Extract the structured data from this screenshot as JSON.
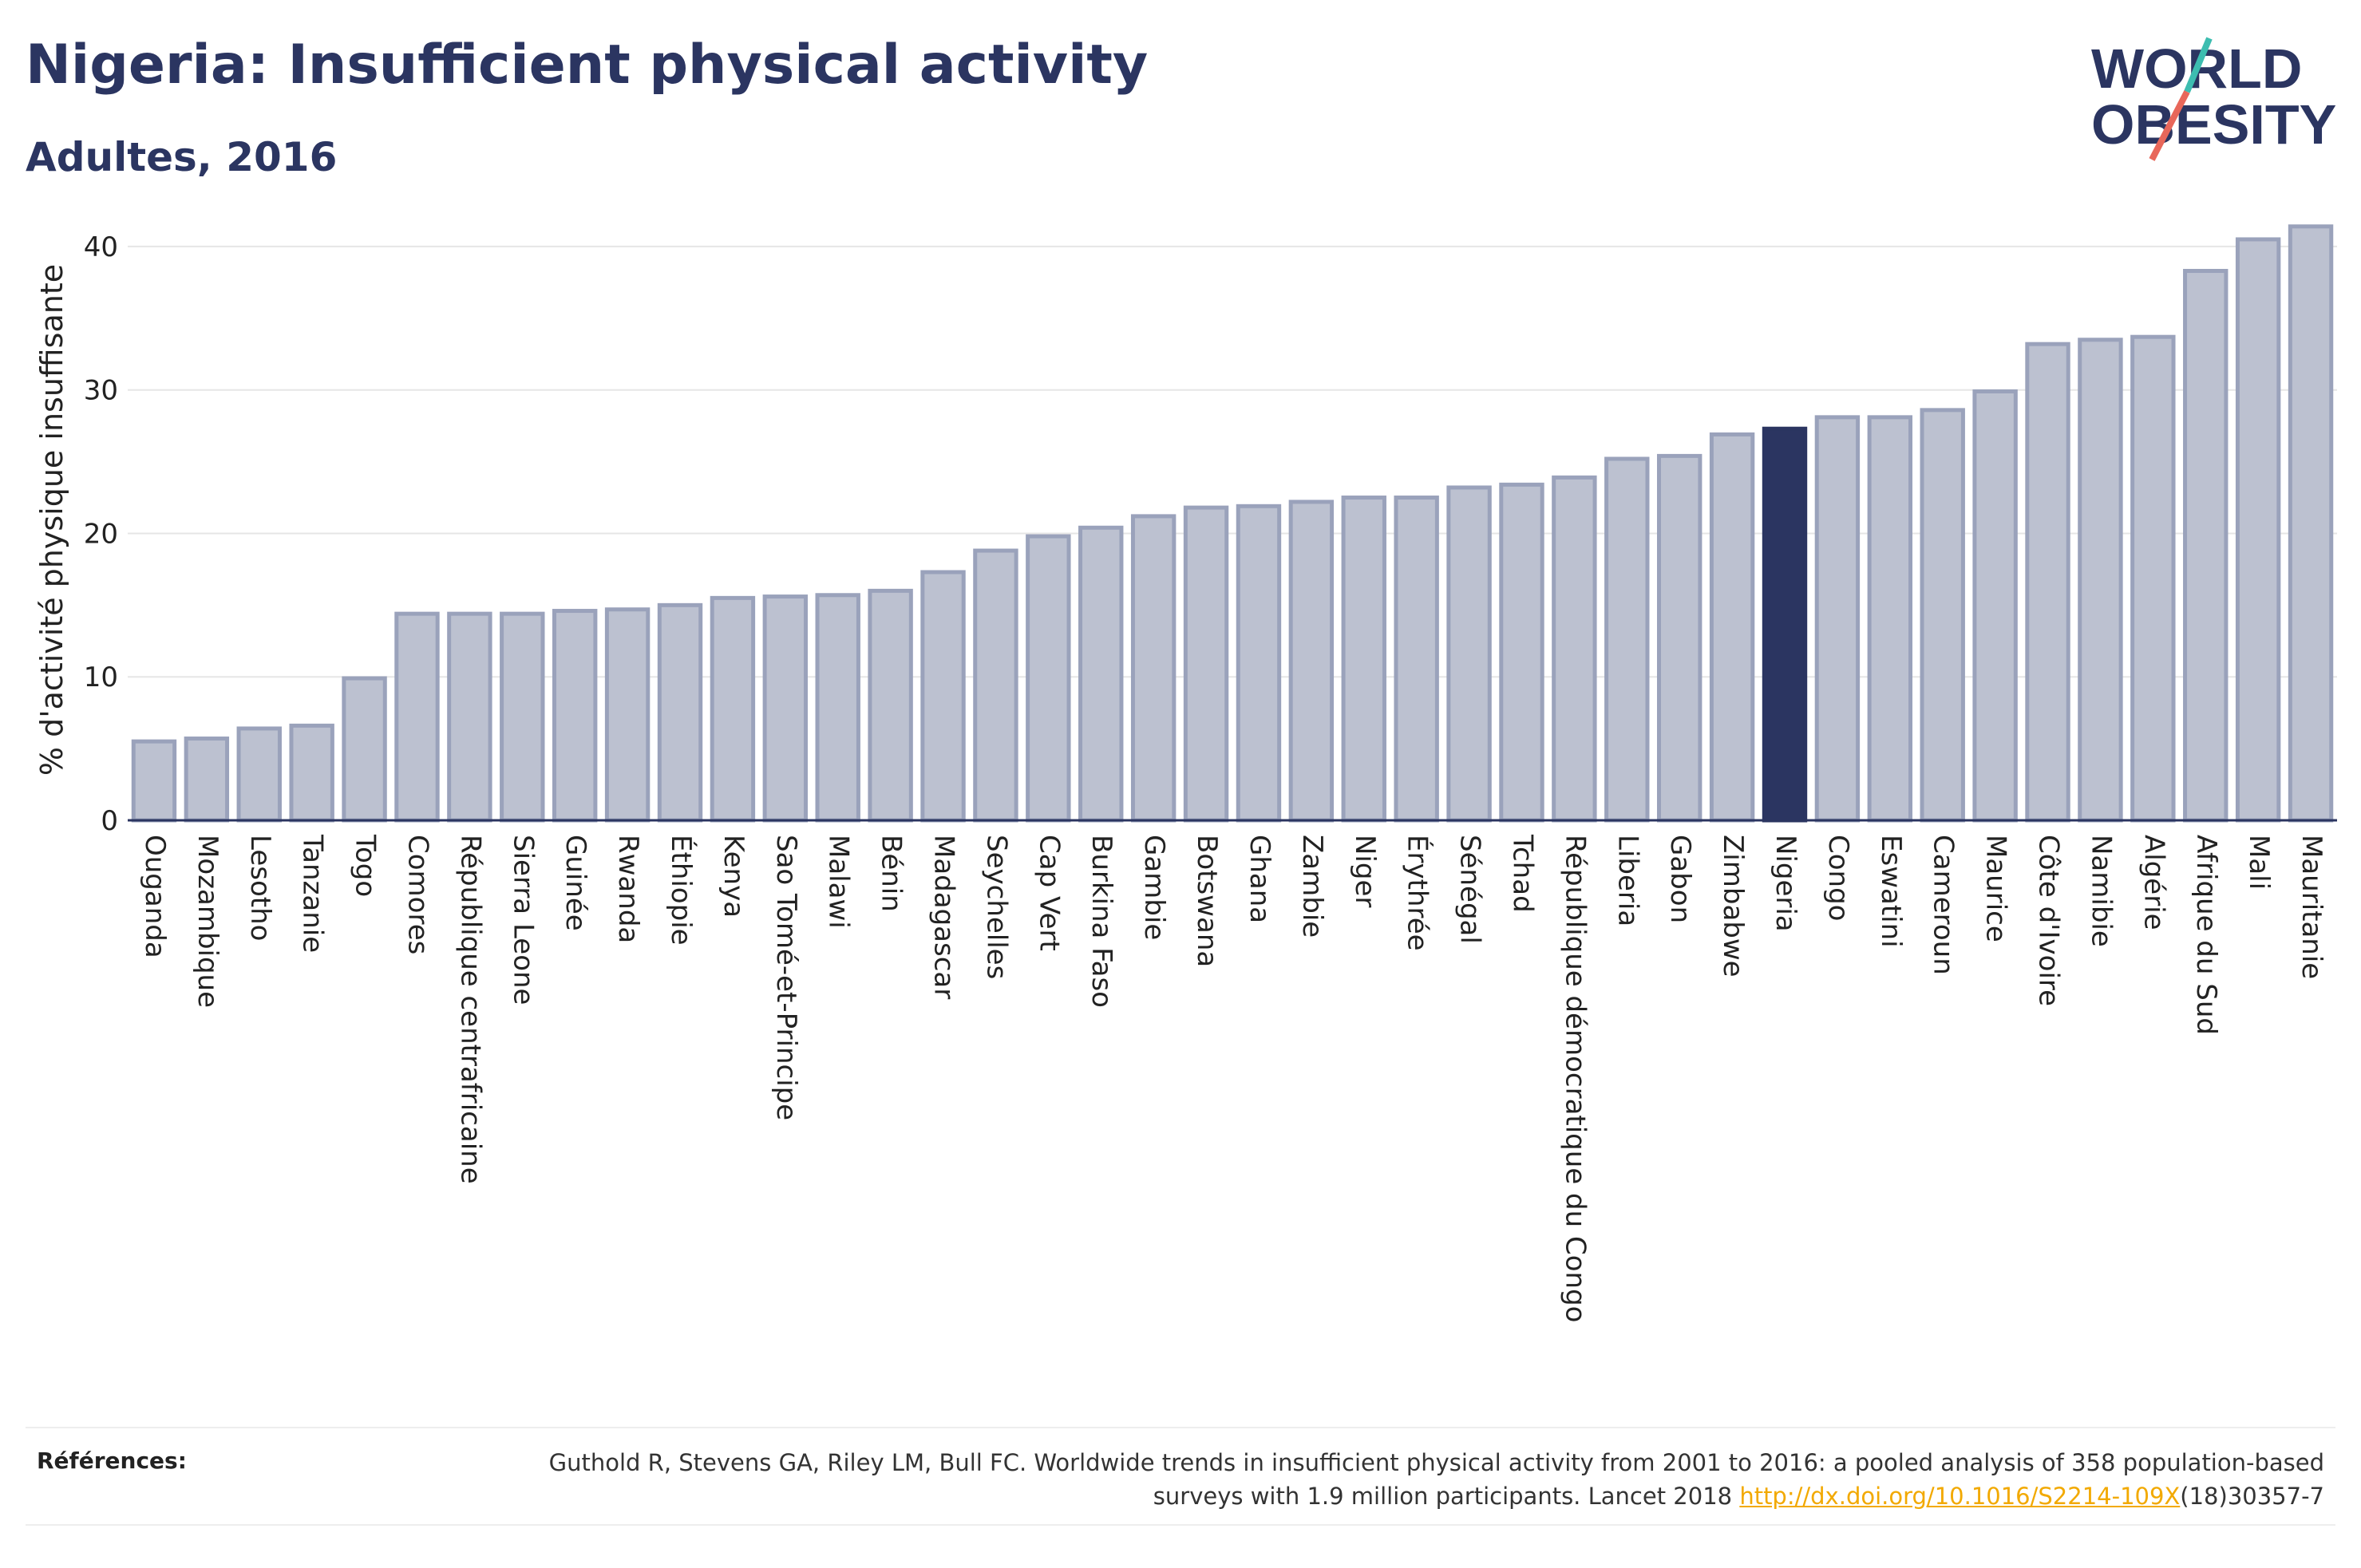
{
  "title": "Nigeria: Insufficient physical activity",
  "subtitle": "Adultes, 2016",
  "logo": {
    "line1": "WORLD",
    "line2": "OBESITY"
  },
  "colors": {
    "bar": "#bcc1d0",
    "bar_stroke": "#9aa2bb",
    "highlight": "#2b3561",
    "accent_teal": "#3dbdb0",
    "accent_red": "#e8675a",
    "link": "#f2a900"
  },
  "chart_data": {
    "type": "bar",
    "ylabel": "% d'activité physique insuffisante",
    "ylim": [
      0,
      43
    ],
    "yticks": [
      0,
      10,
      20,
      30,
      40
    ],
    "grid": true,
    "highlight": "Nigeria",
    "categories": [
      "Ouganda",
      "Mozambique",
      "Lesotho",
      "Tanzanie",
      "Togo",
      "Comores",
      "République centrafricaine",
      "Sierra Leone",
      "Guinée",
      "Rwanda",
      "Éthiopie",
      "Kenya",
      "Sao Tomé-et-Principe",
      "Malawi",
      "Bénin",
      "Madagascar",
      "Seychelles",
      "Cap Vert",
      "Burkina Faso",
      "Gambie",
      "Botswana",
      "Ghana",
      "Zambie",
      "Niger",
      "Érythrée",
      "Sénégal",
      "Tchad",
      "République démocratique du Congo",
      "Liberia",
      "Gabon",
      "Zimbabwe",
      "Nigeria",
      "Congo",
      "Eswatini",
      "Cameroun",
      "Maurice",
      "Côte d'Ivoire",
      "Namibie",
      "Algérie",
      "Afrique du Sud",
      "Mali",
      "Mauritanie"
    ],
    "values": [
      5.5,
      5.7,
      6.4,
      6.6,
      9.9,
      14.4,
      14.4,
      14.4,
      14.6,
      14.7,
      15.0,
      15.5,
      15.6,
      15.7,
      16.0,
      17.3,
      18.8,
      19.8,
      20.4,
      21.2,
      21.8,
      21.9,
      22.2,
      22.5,
      22.5,
      23.2,
      23.4,
      23.9,
      25.2,
      25.4,
      26.9,
      27.3,
      28.1,
      28.1,
      28.6,
      29.9,
      33.2,
      33.5,
      33.7,
      38.3,
      40.5,
      41.4
    ]
  },
  "references": {
    "label": "Références:",
    "text_before": "Guthold R, Stevens GA, Riley LM, Bull FC. Worldwide trends in insufficient physical activity from 2001 to 2016: a pooled analysis of 358 population-based surveys with 1.9 million participants. Lancet 2018 ",
    "link": "http://dx.doi.org/10.1016/S2214-109X",
    "text_after": "(18)30357-7"
  }
}
